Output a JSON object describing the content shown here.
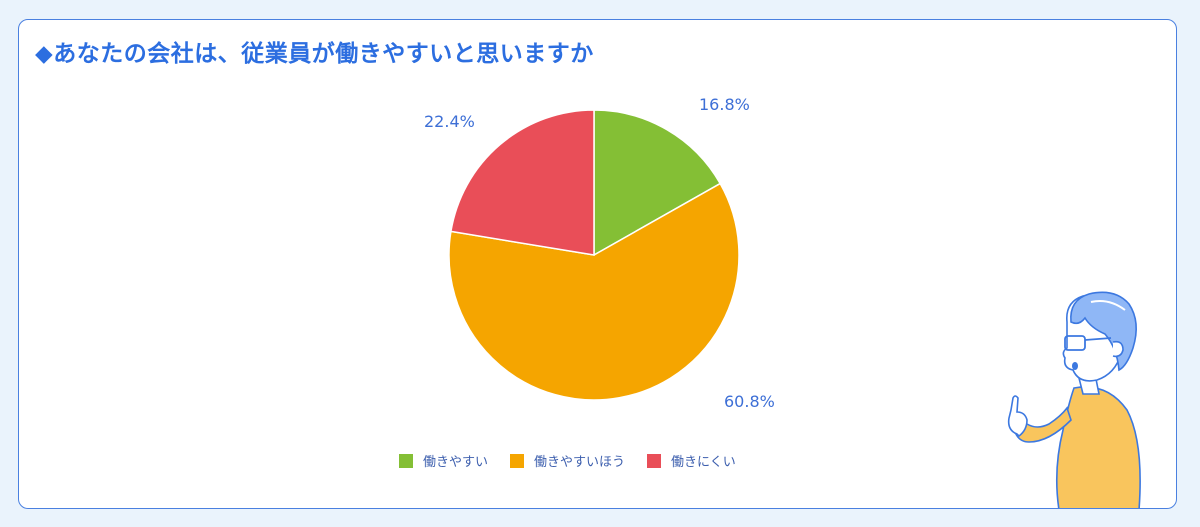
{
  "title": "◆あなたの会社は、従業員が働きやすいと思いますか",
  "colors": {
    "accent": "#2c6ee0",
    "border": "#4a80e0",
    "background": "#eaf3fc"
  },
  "chart_data": {
    "type": "pie",
    "title": "◆あなたの会社は、従業員が働きやすいと思いますか",
    "categories": [
      "働きやすい",
      "働きやすいほう",
      "働きにくい"
    ],
    "values": [
      16.8,
      60.8,
      22.4
    ],
    "labels": [
      "16.8%",
      "60.8%",
      "22.4%"
    ],
    "colors": [
      "#84bf35",
      "#f5a500",
      "#e94e58"
    ],
    "start_angle": "12 o'clock, clockwise",
    "legend_position": "bottom"
  },
  "legend": {
    "items": [
      {
        "label": "働きやすい",
        "color": "#84bf35"
      },
      {
        "label": "働きやすいほう",
        "color": "#f5a500"
      },
      {
        "label": "働きにくい",
        "color": "#e94e58"
      }
    ]
  },
  "illustration": {
    "icon": "pointing-man-illustration"
  }
}
